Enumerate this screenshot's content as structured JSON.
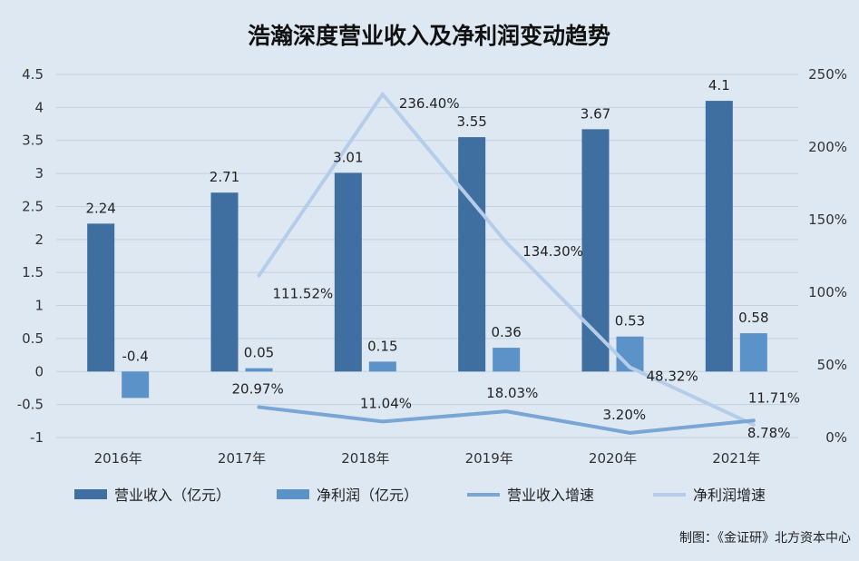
{
  "chart_data": {
    "type": "bar",
    "title": "浩瀚深度营业收入及净利润变动趋势",
    "categories": [
      "2016年",
      "2017年",
      "2018年",
      "2019年",
      "2020年",
      "2021年"
    ],
    "y_left": {
      "min": -1,
      "max": 4.5,
      "step": 0.5,
      "ticks": [
        "-1",
        "-0.5",
        "0",
        "0.5",
        "1",
        "1.5",
        "2",
        "2.5",
        "3",
        "3.5",
        "4",
        "4.5"
      ]
    },
    "y_right": {
      "min": 0,
      "max": 250,
      "step": 50,
      "ticks": [
        "0%",
        "50%",
        "100%",
        "150%",
        "200%",
        "250%"
      ]
    },
    "series": [
      {
        "name": "营业收入（亿元）",
        "kind": "bar",
        "axis": "left",
        "color": "#3f6fa0",
        "values": [
          2.24,
          2.71,
          3.01,
          3.55,
          3.67,
          4.1
        ],
        "labels": [
          "2.24",
          "2.71",
          "3.01",
          "3.55",
          "3.67",
          "4.1"
        ]
      },
      {
        "name": "净利润（亿元）",
        "kind": "bar",
        "axis": "left",
        "color": "#5b93c9",
        "values": [
          -0.4,
          0.05,
          0.15,
          0.36,
          0.53,
          0.58
        ],
        "labels": [
          "-0.4",
          "0.05",
          "0.15",
          "0.36",
          "0.53",
          "0.58"
        ]
      },
      {
        "name": "营业收入增速",
        "kind": "line",
        "axis": "right",
        "color": "#7aa6d6",
        "values": [
          null,
          20.97,
          11.04,
          18.03,
          3.2,
          11.71
        ],
        "labels": [
          null,
          "20.97%",
          "11.04%",
          "18.03%",
          "3.20%",
          "11.71%"
        ]
      },
      {
        "name": "净利润增速",
        "kind": "line",
        "axis": "right",
        "color": "#b6cdea",
        "values": [
          null,
          111.52,
          236.4,
          134.3,
          48.32,
          8.78
        ],
        "labels": [
          null,
          "111.52%",
          "236.40%",
          "134.30%",
          "48.32%",
          "8.78%"
        ]
      }
    ],
    "legend_position": "bottom",
    "grid": true,
    "source": "制图：《金证研》北方资本中心"
  }
}
